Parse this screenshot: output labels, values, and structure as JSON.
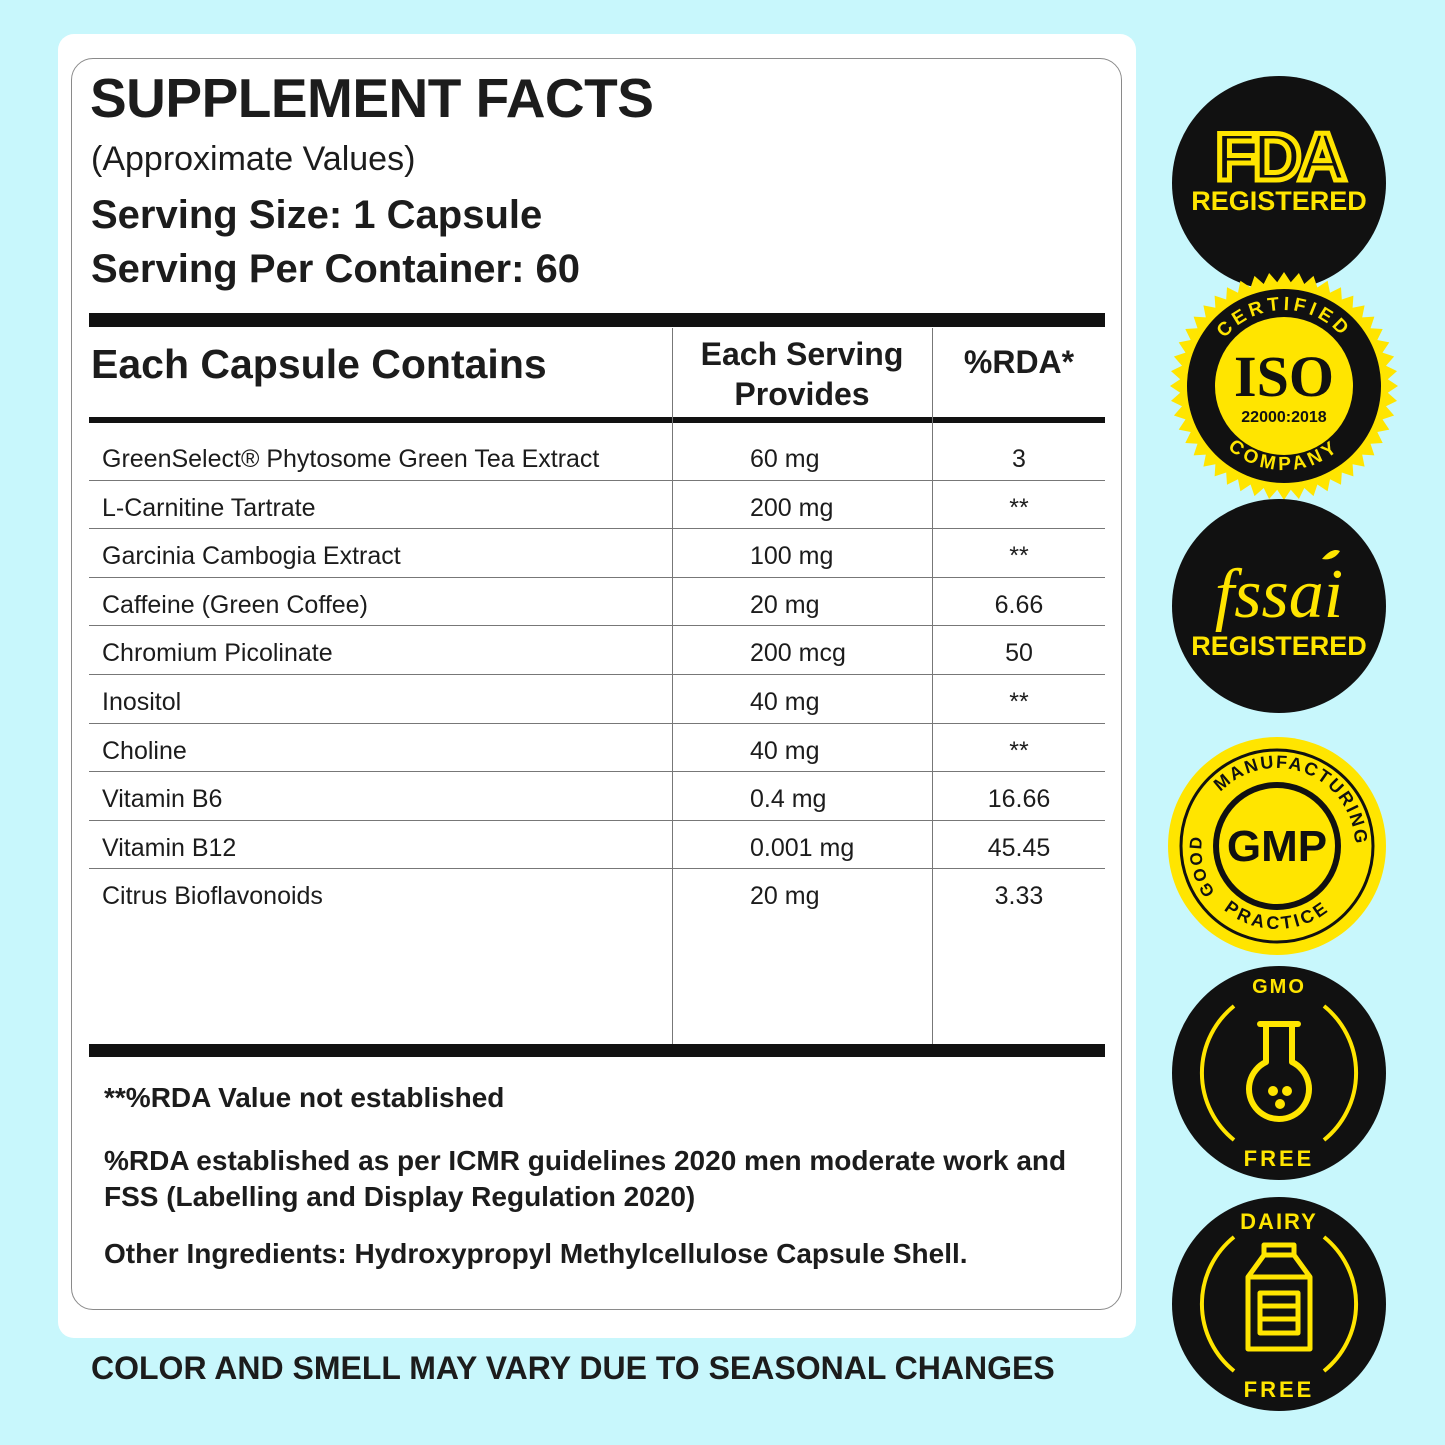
{
  "facts": {
    "title": "SUPPLEMENT FACTS",
    "subtitle": "(Approximate Values)",
    "serving_size": "Serving Size: 1 Capsule",
    "serving_per_container": "Serving Per Container: 60"
  },
  "table": {
    "headers": {
      "contains": "Each Capsule Contains",
      "provides": "Each Serving Provides",
      "rda": "%RDA*"
    },
    "rows": [
      {
        "name": "GreenSelect® Phytosome Green Tea Extract",
        "amount": "60 mg",
        "rda": "3"
      },
      {
        "name": "L-Carnitine Tartrate",
        "amount": "200 mg",
        "rda": "**"
      },
      {
        "name": "Garcinia Cambogia Extract",
        "amount": "100 mg",
        "rda": "**"
      },
      {
        "name": "Caffeine (Green Coffee)",
        "amount": "20 mg",
        "rda": "6.66"
      },
      {
        "name": "Chromium Picolinate",
        "amount": "200 mcg",
        "rda": "50"
      },
      {
        "name": "Inositol",
        "amount": "40 mg",
        "rda": "**"
      },
      {
        "name": "Choline",
        "amount": "40 mg",
        "rda": "**"
      },
      {
        "name": "Vitamin B6",
        "amount": "0.4 mg",
        "rda": "16.66"
      },
      {
        "name": "Vitamin B12",
        "amount": "0.001 mg",
        "rda": "45.45"
      },
      {
        "name": "Citrus Bioflavonoids",
        "amount": "20 mg",
        "rda": "3.33"
      }
    ]
  },
  "notes": {
    "not_established": "**%RDA Value not established",
    "rda_basis": "%RDA established as per ICMR guidelines 2020 men moderate work and FSS (Labelling and Display Regulation 2020)",
    "other_ingredients": "Other Ingredients: Hydroxypropyl Methylcellulose Capsule Shell."
  },
  "footer": "COLOR AND SMELL MAY VARY DUE TO SEASONAL CHANGES",
  "badges": {
    "fda": {
      "main": "FDA",
      "sub": "REGISTERED",
      "icon": "fda-logo"
    },
    "iso": {
      "top": "CERTIFIED",
      "main": "ISO",
      "sub": "22000:2018",
      "bottom": "COMPANY",
      "icon": "iso-seal"
    },
    "fssai": {
      "main": "fssai",
      "sub": "REGISTERED",
      "icon": "fssai-logo"
    },
    "gmp": {
      "top": "MANUFACTURING",
      "left": "GOOD",
      "bottom": "PRACTICE",
      "main": "GMP",
      "icon": "gmp-seal"
    },
    "gmo": {
      "top": "GMO",
      "bottom": "FREE",
      "icon": "flask-icon"
    },
    "dairy": {
      "top": "DAIRY",
      "bottom": "FREE",
      "icon": "milk-carton-icon"
    }
  },
  "colors": {
    "background": "#c8f7fc",
    "badge_yellow": "#ffe500",
    "badge_black": "#111111"
  }
}
